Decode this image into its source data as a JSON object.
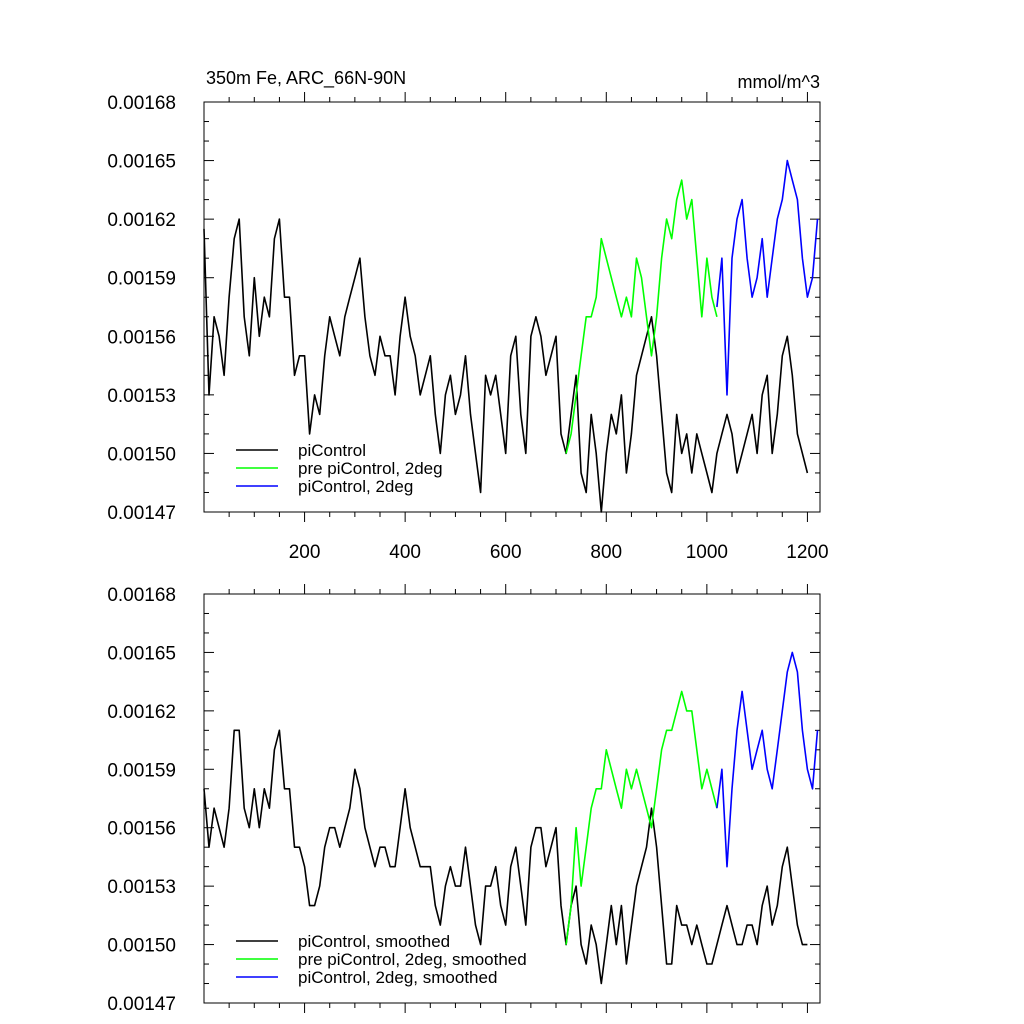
{
  "chart_data": [
    {
      "type": "line",
      "title_left": "350m Fe, ARC_66N-90N",
      "title_right": "mmol/m^3",
      "xlim": [
        0,
        1225
      ],
      "ylim": [
        0.00147,
        0.00168
      ],
      "yticks": [
        "0.00168",
        "0.00165",
        "0.00162",
        "0.00159",
        "0.00156",
        "0.00153",
        "0.00150",
        "0.00147"
      ],
      "xticks": [
        "200",
        "400",
        "600",
        "800",
        "1000",
        "1200"
      ],
      "grid": false,
      "legend_position": "bottom-left",
      "series": [
        {
          "name": "piControl",
          "color": "#000000",
          "x": [
            0,
            10,
            20,
            30,
            40,
            50,
            60,
            70,
            80,
            90,
            100,
            110,
            120,
            130,
            140,
            150,
            160,
            170,
            180,
            190,
            200,
            210,
            220,
            230,
            240,
            250,
            260,
            270,
            280,
            290,
            300,
            310,
            320,
            330,
            340,
            350,
            360,
            370,
            380,
            390,
            400,
            410,
            420,
            430,
            440,
            450,
            460,
            470,
            480,
            490,
            500,
            510,
            520,
            530,
            540,
            550,
            560,
            570,
            580,
            590,
            600,
            610,
            620,
            630,
            640,
            650,
            660,
            670,
            680,
            690,
            700,
            710,
            720,
            730,
            740,
            750,
            760,
            770,
            780,
            790,
            800,
            810,
            820,
            830,
            840,
            850,
            860,
            870,
            880,
            890,
            900,
            910,
            920,
            930,
            940,
            950,
            960,
            970,
            980,
            990,
            1000,
            1010,
            1020,
            1030,
            1040,
            1050,
            1060,
            1070,
            1080,
            1090,
            1100,
            1110,
            1120,
            1130,
            1140,
            1150,
            1160,
            1170,
            1180,
            1190,
            1200
          ],
          "y": [
            0.001615,
            0.00153,
            0.00157,
            0.00156,
            0.00154,
            0.00158,
            0.00161,
            0.00162,
            0.00157,
            0.00155,
            0.00159,
            0.00156,
            0.00158,
            0.00157,
            0.00161,
            0.00162,
            0.00158,
            0.00158,
            0.00154,
            0.00155,
            0.00155,
            0.00151,
            0.00153,
            0.00152,
            0.00155,
            0.00157,
            0.00156,
            0.00155,
            0.00157,
            0.00158,
            0.00159,
            0.0016,
            0.00157,
            0.00155,
            0.00154,
            0.00156,
            0.00155,
            0.00155,
            0.00153,
            0.00156,
            0.00158,
            0.00156,
            0.00155,
            0.00153,
            0.00154,
            0.00155,
            0.00152,
            0.0015,
            0.00153,
            0.00154,
            0.00152,
            0.00153,
            0.00155,
            0.00152,
            0.0015,
            0.00148,
            0.00154,
            0.00153,
            0.00154,
            0.00152,
            0.0015,
            0.00155,
            0.00156,
            0.00152,
            0.0015,
            0.00156,
            0.00157,
            0.00156,
            0.00154,
            0.00155,
            0.00156,
            0.00151,
            0.0015,
            0.00152,
            0.00154,
            0.00149,
            0.00148,
            0.00152,
            0.0015,
            0.00147,
            0.0015,
            0.00152,
            0.00151,
            0.00153,
            0.00149,
            0.00151,
            0.00154,
            0.00155,
            0.00156,
            0.00157,
            0.00155,
            0.00152,
            0.00149,
            0.00148,
            0.00152,
            0.0015,
            0.00151,
            0.00149,
            0.00151,
            0.0015,
            0.00149,
            0.00148,
            0.0015,
            0.00151,
            0.00152,
            0.00151,
            0.00149,
            0.0015,
            0.00151,
            0.00152,
            0.0015,
            0.00153,
            0.00154,
            0.0015,
            0.00152,
            0.00155,
            0.00156,
            0.00154,
            0.00151,
            0.0015,
            0.00149
          ]
        },
        {
          "name": "pre piControl, 2deg",
          "color": "#00ff00",
          "x": [
            720,
            730,
            740,
            750,
            760,
            770,
            780,
            790,
            800,
            810,
            820,
            830,
            840,
            850,
            860,
            870,
            880,
            890,
            900,
            910,
            920,
            930,
            940,
            950,
            960,
            970,
            980,
            990,
            1000,
            1010,
            1020
          ],
          "y": [
            0.0015,
            0.00151,
            0.00153,
            0.00155,
            0.00157,
            0.00157,
            0.00158,
            0.00161,
            0.0016,
            0.00159,
            0.00158,
            0.00157,
            0.00158,
            0.00157,
            0.0016,
            0.00159,
            0.00157,
            0.00155,
            0.00157,
            0.0016,
            0.00162,
            0.00161,
            0.00163,
            0.00164,
            0.00162,
            0.00163,
            0.0016,
            0.00157,
            0.0016,
            0.00158,
            0.00157
          ]
        },
        {
          "name": "piControl, 2deg",
          "color": "#0000ff",
          "x": [
            1020,
            1030,
            1040,
            1050,
            1060,
            1070,
            1080,
            1090,
            1100,
            1110,
            1120,
            1130,
            1140,
            1150,
            1160,
            1170,
            1180,
            1190,
            1200,
            1210,
            1220
          ],
          "y": [
            0.001575,
            0.0016,
            0.00153,
            0.0016,
            0.00162,
            0.00163,
            0.0016,
            0.00158,
            0.00159,
            0.00161,
            0.00158,
            0.0016,
            0.00162,
            0.00163,
            0.00165,
            0.00164,
            0.00163,
            0.0016,
            0.00158,
            0.00159,
            0.00162
          ]
        }
      ]
    },
    {
      "type": "line",
      "xlim": [
        0,
        1225
      ],
      "ylim": [
        0.00147,
        0.00168
      ],
      "yticks": [
        "0.00168",
        "0.00165",
        "0.00162",
        "0.00159",
        "0.00156",
        "0.00153",
        "0.00150",
        "0.00147"
      ],
      "grid": false,
      "legend_position": "bottom-left",
      "series": [
        {
          "name": "piControl, smoothed",
          "color": "#000000",
          "x": [
            0,
            10,
            20,
            30,
            40,
            50,
            60,
            70,
            80,
            90,
            100,
            110,
            120,
            130,
            140,
            150,
            160,
            170,
            180,
            190,
            200,
            210,
            220,
            230,
            240,
            250,
            260,
            270,
            280,
            290,
            300,
            310,
            320,
            330,
            340,
            350,
            360,
            370,
            380,
            390,
            400,
            410,
            420,
            430,
            440,
            450,
            460,
            470,
            480,
            490,
            500,
            510,
            520,
            530,
            540,
            550,
            560,
            570,
            580,
            590,
            600,
            610,
            620,
            630,
            640,
            650,
            660,
            670,
            680,
            690,
            700,
            710,
            720,
            730,
            740,
            750,
            760,
            770,
            780,
            790,
            800,
            810,
            820,
            830,
            840,
            850,
            860,
            870,
            880,
            890,
            900,
            910,
            920,
            930,
            940,
            950,
            960,
            970,
            980,
            990,
            1000,
            1010,
            1020,
            1030,
            1040,
            1050,
            1060,
            1070,
            1080,
            1090,
            1100,
            1110,
            1120,
            1130,
            1140,
            1150,
            1160,
            1170,
            1180,
            1190,
            1200
          ],
          "y": [
            0.00158,
            0.00155,
            0.00157,
            0.00156,
            0.00155,
            0.00157,
            0.00161,
            0.00161,
            0.00157,
            0.00156,
            0.00158,
            0.00156,
            0.00158,
            0.00157,
            0.0016,
            0.00161,
            0.00158,
            0.00158,
            0.00155,
            0.00155,
            0.00154,
            0.00152,
            0.00152,
            0.00153,
            0.00155,
            0.00156,
            0.00156,
            0.00155,
            0.00156,
            0.00157,
            0.00159,
            0.00158,
            0.00156,
            0.00155,
            0.00154,
            0.00155,
            0.00155,
            0.00154,
            0.00154,
            0.00156,
            0.00158,
            0.00156,
            0.00155,
            0.00154,
            0.00154,
            0.00154,
            0.00152,
            0.00151,
            0.00153,
            0.00154,
            0.00153,
            0.00153,
            0.00155,
            0.00153,
            0.00151,
            0.0015,
            0.00153,
            0.00153,
            0.00154,
            0.00152,
            0.00151,
            0.00154,
            0.00155,
            0.00153,
            0.00151,
            0.00155,
            0.00156,
            0.00156,
            0.00154,
            0.00155,
            0.00156,
            0.00152,
            0.0015,
            0.00152,
            0.00153,
            0.0015,
            0.00149,
            0.00151,
            0.0015,
            0.00148,
            0.0015,
            0.00152,
            0.0015,
            0.00152,
            0.00149,
            0.00151,
            0.00153,
            0.00154,
            0.00155,
            0.00157,
            0.00155,
            0.00152,
            0.00149,
            0.00149,
            0.00152,
            0.00151,
            0.00151,
            0.0015,
            0.00151,
            0.0015,
            0.00149,
            0.00149,
            0.0015,
            0.00151,
            0.00152,
            0.00151,
            0.0015,
            0.0015,
            0.00151,
            0.00151,
            0.0015,
            0.00152,
            0.00153,
            0.00151,
            0.00152,
            0.00154,
            0.00155,
            0.00153,
            0.00151,
            0.0015,
            0.0015
          ]
        },
        {
          "name": "pre piControl, 2deg, smoothed",
          "color": "#00ff00",
          "x": [
            720,
            730,
            740,
            750,
            760,
            770,
            780,
            790,
            800,
            810,
            820,
            830,
            840,
            850,
            860,
            870,
            880,
            890,
            900,
            910,
            920,
            930,
            940,
            950,
            960,
            970,
            980,
            990,
            1000,
            1010,
            1020
          ],
          "y": [
            0.0015,
            0.00152,
            0.00156,
            0.00153,
            0.00155,
            0.00157,
            0.00158,
            0.00158,
            0.0016,
            0.00159,
            0.00158,
            0.00157,
            0.00159,
            0.00158,
            0.00159,
            0.00158,
            0.00157,
            0.00156,
            0.00158,
            0.0016,
            0.00161,
            0.00161,
            0.00162,
            0.00163,
            0.00162,
            0.00162,
            0.0016,
            0.00158,
            0.00159,
            0.00158,
            0.00157
          ]
        },
        {
          "name": "piControl, 2deg, smoothed",
          "color": "#0000ff",
          "x": [
            1020,
            1030,
            1040,
            1050,
            1060,
            1070,
            1080,
            1090,
            1100,
            1110,
            1120,
            1130,
            1140,
            1150,
            1160,
            1170,
            1180,
            1190,
            1200,
            1210,
            1220
          ],
          "y": [
            0.00157,
            0.00159,
            0.00154,
            0.00158,
            0.00161,
            0.00163,
            0.00161,
            0.00159,
            0.0016,
            0.00161,
            0.00159,
            0.00158,
            0.0016,
            0.00162,
            0.00164,
            0.00165,
            0.00164,
            0.00161,
            0.00159,
            0.00158,
            0.00161
          ]
        }
      ]
    }
  ]
}
